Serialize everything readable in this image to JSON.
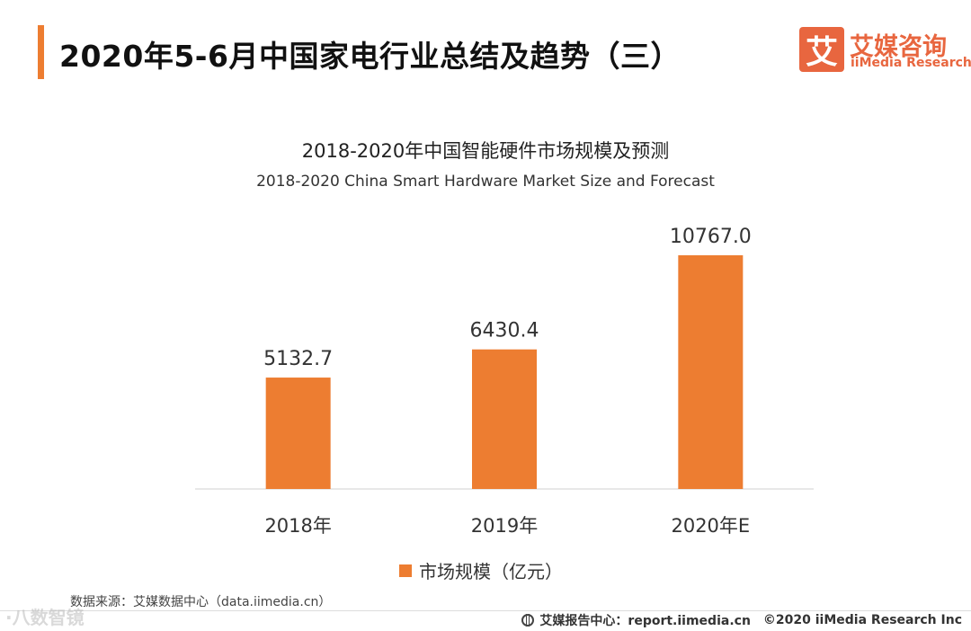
{
  "header": {
    "title": "2020年5-6月中国家电行业总结及趋势（三）",
    "logo": {
      "mark": "艾",
      "name_cn": "艾媒咨询",
      "name_en": "iiMedia Research"
    }
  },
  "chart_data": {
    "type": "bar",
    "title": "2018-2020年中国智能硬件市场规模及预测",
    "subtitle": "2018-2020 China Smart Hardware Market Size and Forecast",
    "categories": [
      "2018年",
      "2019年",
      "2020年E"
    ],
    "series": [
      {
        "name": "市场规模（亿元）",
        "values": [
          5132.7,
          6430.4,
          10767.0
        ],
        "labels": [
          "5132.7",
          "6430.4",
          "10767.0"
        ],
        "color": "#ed7d31"
      }
    ],
    "xlabel": "",
    "ylabel": "",
    "ylim": [
      0,
      12000
    ],
    "grid": false,
    "legend_position": "bottom"
  },
  "source": "数据来源：艾媒数据中心（data.iimedia.cn）",
  "watermark": "·八数智镜",
  "footer": {
    "report_center": "艾媒报告中心：report.iimedia.cn",
    "copyright": "©2020  iiMedia Research  Inc"
  },
  "colors": {
    "accent": "#ed7d31",
    "logo": "#e8663f"
  }
}
